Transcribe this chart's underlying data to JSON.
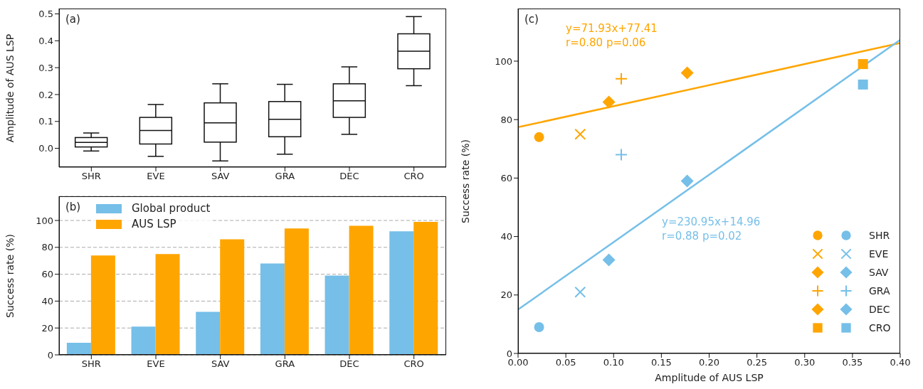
{
  "chart_data": [
    {
      "type": "box",
      "title": "(a)",
      "ylabel": "Amplitude of AUS LSP",
      "categories": [
        "SHR",
        "EVE",
        "SAV",
        "GRA",
        "DEC",
        "CRO"
      ],
      "ylim": [
        -0.07,
        0.52
      ],
      "yticks": [
        {
          "value": 0,
          "label": "0.0"
        },
        0.1,
        0.2,
        0.3,
        0.4,
        0.5
      ],
      "boxes": [
        {
          "low": -0.01,
          "q1": 0.005,
          "median": 0.022,
          "q3": 0.04,
          "high": 0.057
        },
        {
          "low": -0.03,
          "q1": 0.016,
          "median": 0.066,
          "q3": 0.115,
          "high": 0.163
        },
        {
          "low": -0.047,
          "q1": 0.023,
          "median": 0.095,
          "q3": 0.169,
          "high": 0.24
        },
        {
          "low": -0.022,
          "q1": 0.043,
          "median": 0.108,
          "q3": 0.174,
          "high": 0.238
        },
        {
          "low": 0.052,
          "q1": 0.115,
          "median": 0.177,
          "q3": 0.24,
          "high": 0.303
        },
        {
          "low": 0.233,
          "q1": 0.296,
          "median": 0.361,
          "q3": 0.426,
          "high": 0.49
        }
      ]
    },
    {
      "type": "bar",
      "title": "(b)",
      "ylabel": "Success rate (%)",
      "categories": [
        "SHR",
        "EVE",
        "SAV",
        "GRA",
        "DEC",
        "CRO"
      ],
      "ylim": [
        0,
        118
      ],
      "yticks": [
        0,
        20,
        40,
        60,
        80,
        100
      ],
      "grid": "y",
      "legend": "top left",
      "series": [
        {
          "name": "Global product",
          "color": "#75bfe8",
          "values": [
            9,
            21,
            32,
            68,
            59,
            92
          ]
        },
        {
          "name": "AUS LSP",
          "color": "#ffa500",
          "values": [
            74,
            75,
            86,
            94,
            96,
            99
          ]
        }
      ]
    },
    {
      "type": "scatter",
      "title": "(c)",
      "xlabel": "Amplitude of AUS LSP",
      "ylabel": "Success rate (%)",
      "xlim": [
        0,
        0.4
      ],
      "xticks": [
        {
          "value": 0,
          "label": "0.00"
        },
        0.05,
        {
          "value": 0.1,
          "label": "0.10"
        },
        0.15,
        {
          "value": 0.2,
          "label": "0.20"
        },
        0.25,
        {
          "value": 0.3,
          "label": "0.30"
        },
        0.35,
        {
          "value": 0.4,
          "label": "0.40"
        }
      ],
      "ylim": [
        0,
        118
      ],
      "yticks": [
        0,
        20,
        40,
        60,
        80,
        100
      ],
      "legend": "bottom right",
      "annotations": [
        "y=71.93x+77.41\nr=0.80 p=0.06",
        "y=230.95x+14.96\nr=0.88 p=0.02"
      ],
      "series": [
        {
          "name": "SHR",
          "type": "scatter",
          "marker": "circle",
          "colors": [
            "#ffa500",
            "#75bfe8"
          ],
          "x": [
            0.022,
            0.022
          ],
          "values": [
            74,
            9
          ]
        },
        {
          "name": "EVE",
          "type": "scatter",
          "marker": "cross",
          "colors": [
            "#ffa500",
            "#75bfe8"
          ],
          "x": [
            0.065,
            0.065
          ],
          "values": [
            75,
            21
          ]
        },
        {
          "name": "SAV",
          "type": "scatter",
          "marker": "diamond",
          "colors": [
            "#ffa500",
            "#75bfe8"
          ],
          "x": [
            0.095,
            0.095
          ],
          "values": [
            86,
            32
          ]
        },
        {
          "name": "GRA",
          "type": "scatter",
          "marker": "plus",
          "colors": [
            "#ffa500",
            "#75bfe8"
          ],
          "x": [
            0.108,
            0.108
          ],
          "values": [
            94,
            68
          ]
        },
        {
          "name": "DEC",
          "type": "scatter",
          "marker": "diamond",
          "colors": [
            "#ffa500",
            "#75bfe8"
          ],
          "x": [
            0.177,
            0.177
          ],
          "values": [
            96,
            59
          ]
        },
        {
          "name": "CRO",
          "type": "scatter",
          "marker": "square",
          "colors": [
            "#ffa500",
            "#75bfe8"
          ],
          "x": [
            0.361,
            0.361
          ],
          "values": [
            99,
            92
          ]
        },
        {
          "type": "line",
          "color": "#ffa500",
          "x": [
            0,
            0.4
          ],
          "values": [
            77.4,
            106.2
          ]
        },
        {
          "type": "line",
          "color": "#75bfe8",
          "x": [
            0,
            0.4
          ],
          "values": [
            15.0,
            107.3
          ]
        }
      ]
    }
  ]
}
